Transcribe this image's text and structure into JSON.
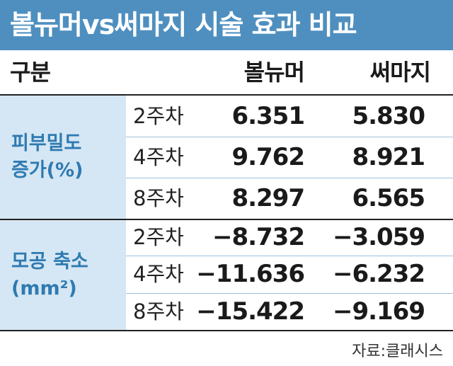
{
  "title": "볼뉴머vs써마지 시술 효과 비교",
  "header": {
    "category": "구분",
    "col1": "볼뉴머",
    "col2": "써마지"
  },
  "sections": [
    {
      "label_line1": "피부밀도",
      "label_line2": "증가(%)",
      "rows": [
        {
          "week": "2주차",
          "v1": "6.351",
          "v2": "5.830"
        },
        {
          "week": "4주차",
          "v1": "9.762",
          "v2": "8.921"
        },
        {
          "week": "8주차",
          "v1": "8.297",
          "v2": "6.565"
        }
      ]
    },
    {
      "label_line1": "모공 축소",
      "label_line2": "(mm²)",
      "rows": [
        {
          "week": "2주차",
          "v1": "−8.732",
          "v2": "−3.059"
        },
        {
          "week": "4주차",
          "v1": "−11.636",
          "v2": "−6.232"
        },
        {
          "week": "8주차",
          "v1": "−15.422",
          "v2": "−9.169"
        }
      ]
    }
  ],
  "source": "자료:클래시스",
  "colors": {
    "title_bg": "#4e8fbf",
    "label_bg": "#d5e7f4",
    "label_text": "#2f7ab1"
  }
}
